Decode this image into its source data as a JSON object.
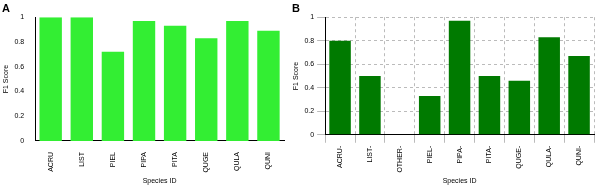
{
  "chart_data": [
    {
      "type": "bar",
      "title": "A",
      "x_label": "Species ID",
      "y_label": "F1 Score",
      "categories": [
        "ACRU",
        "LIST",
        "PIEL",
        "PIPA",
        "PITA",
        "QUGE",
        "QULA",
        "QUNI"
      ],
      "values": [
        1.0,
        1.0,
        0.72,
        0.97,
        0.93,
        0.83,
        0.97,
        0.89
      ],
      "color": "#33ee33",
      "ylim": [
        0,
        1
      ],
      "yticks": [
        0,
        0.2,
        0.4,
        0.6,
        0.8,
        1
      ],
      "grid": false
    },
    {
      "type": "bar",
      "title": "B",
      "x_label": "Species ID",
      "y_label": "F1 Score",
      "categories": [
        "ACRU-",
        "LIST-",
        "OTHER-",
        "PIEL-",
        "PIPA-",
        "PITA-",
        "QUGE-",
        "QULA-",
        "QUNI-"
      ],
      "values": [
        0.8,
        0.5,
        0,
        0.33,
        0.97,
        0.5,
        0.46,
        0.83,
        0.67
      ],
      "color": "#007a00",
      "ylim": [
        0,
        1
      ],
      "yticks": [
        0,
        0.2,
        0.4,
        0.6,
        0.8,
        1
      ],
      "grid": true
    }
  ]
}
